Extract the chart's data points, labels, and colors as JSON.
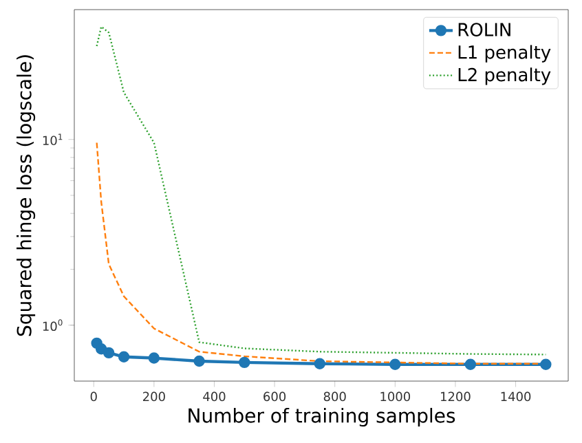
{
  "chart_data": {
    "type": "line",
    "xlabel": "Number of training samples",
    "ylabel": "Squared hinge loss (logscale)",
    "log": "y",
    "legend": "top right",
    "grid": false,
    "xlim": [
      -64.5,
      1574.5
    ],
    "xticks": [
      0,
      200,
      400,
      600,
      800,
      1000,
      1200,
      1400
    ],
    "ylim": [
      0.5,
      50
    ],
    "yticks": [
      {
        "value": 1,
        "label": "10$^{0}$"
      },
      {
        "value": 10,
        "label": "10$^{1}$"
      }
    ],
    "series": [
      {
        "name": "ROLIN",
        "color": "#1f77b4",
        "marker": "circle",
        "line_style": "solid",
        "x": [
          10,
          25,
          50,
          100,
          200,
          350,
          500,
          750,
          1000,
          1250,
          1500
        ],
        "values": [
          0.8,
          0.745,
          0.71,
          0.675,
          0.665,
          0.64,
          0.63,
          0.62,
          0.615,
          0.615,
          0.615
        ]
      },
      {
        "name": "L1 penalty",
        "color": "#ff7f0e",
        "marker": "none",
        "line_style": "dashed",
        "x": [
          10,
          25,
          50,
          100,
          200,
          350,
          500,
          750,
          1000,
          1250,
          1500
        ],
        "values": [
          9.6,
          4.6,
          2.13,
          1.43,
          0.96,
          0.72,
          0.68,
          0.64,
          0.63,
          0.62,
          0.62
        ]
      },
      {
        "name": "L2 penalty",
        "color": "#2ca02c",
        "marker": "none",
        "line_style": "dotted",
        "x": [
          10,
          25,
          50,
          100,
          200,
          350,
          500,
          750,
          1000,
          1250,
          1500
        ],
        "values": [
          31.8,
          40.5,
          37.6,
          17.9,
          9.6,
          0.81,
          0.75,
          0.72,
          0.71,
          0.7,
          0.695
        ]
      }
    ]
  }
}
